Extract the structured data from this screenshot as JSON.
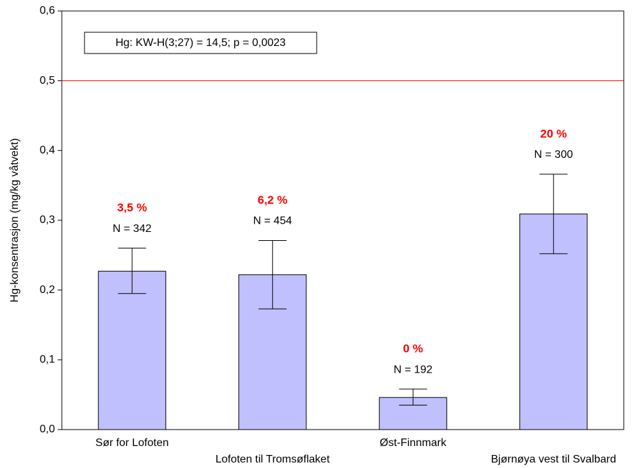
{
  "chart_data": {
    "type": "bar",
    "y_label": "Hg-konsentrasjon (mg/kg våtvekt)",
    "annotation": "Hg: KW-H(3;27) = 14,5; p = 0,0023",
    "categories": [
      "Sør for Lofoten",
      "Lofoten til Tromsøflaket",
      "Øst-Finnmark",
      "Bjørnøya vest til Svalbard"
    ],
    "values": [
      0.227,
      0.222,
      0.046,
      0.309
    ],
    "error_low": [
      0.195,
      0.173,
      0.035,
      0.252
    ],
    "error_high": [
      0.26,
      0.271,
      0.058,
      0.366
    ],
    "share_labels": [
      "3,5 %",
      "6,2 %",
      "0 %",
      "20 %"
    ],
    "n_labels": [
      "N = 342",
      "N = 454",
      "N = 192",
      "N = 300"
    ],
    "color": "#c0c0ff",
    "reference_line": {
      "value": 0.5,
      "color": "#ff0000"
    },
    "ylim": [
      0,
      0.6
    ],
    "yticks": [
      {
        "value": 0,
        "label": "0,0"
      },
      {
        "value": 0.1,
        "label": "0,1"
      },
      {
        "value": 0.2,
        "label": "0,2"
      },
      {
        "value": 0.3,
        "label": "0,3"
      },
      {
        "value": 0.4,
        "label": "0,4"
      },
      {
        "value": 0.5,
        "label": "0,5"
      },
      {
        "value": 0.6,
        "label": "0,6"
      }
    ]
  }
}
